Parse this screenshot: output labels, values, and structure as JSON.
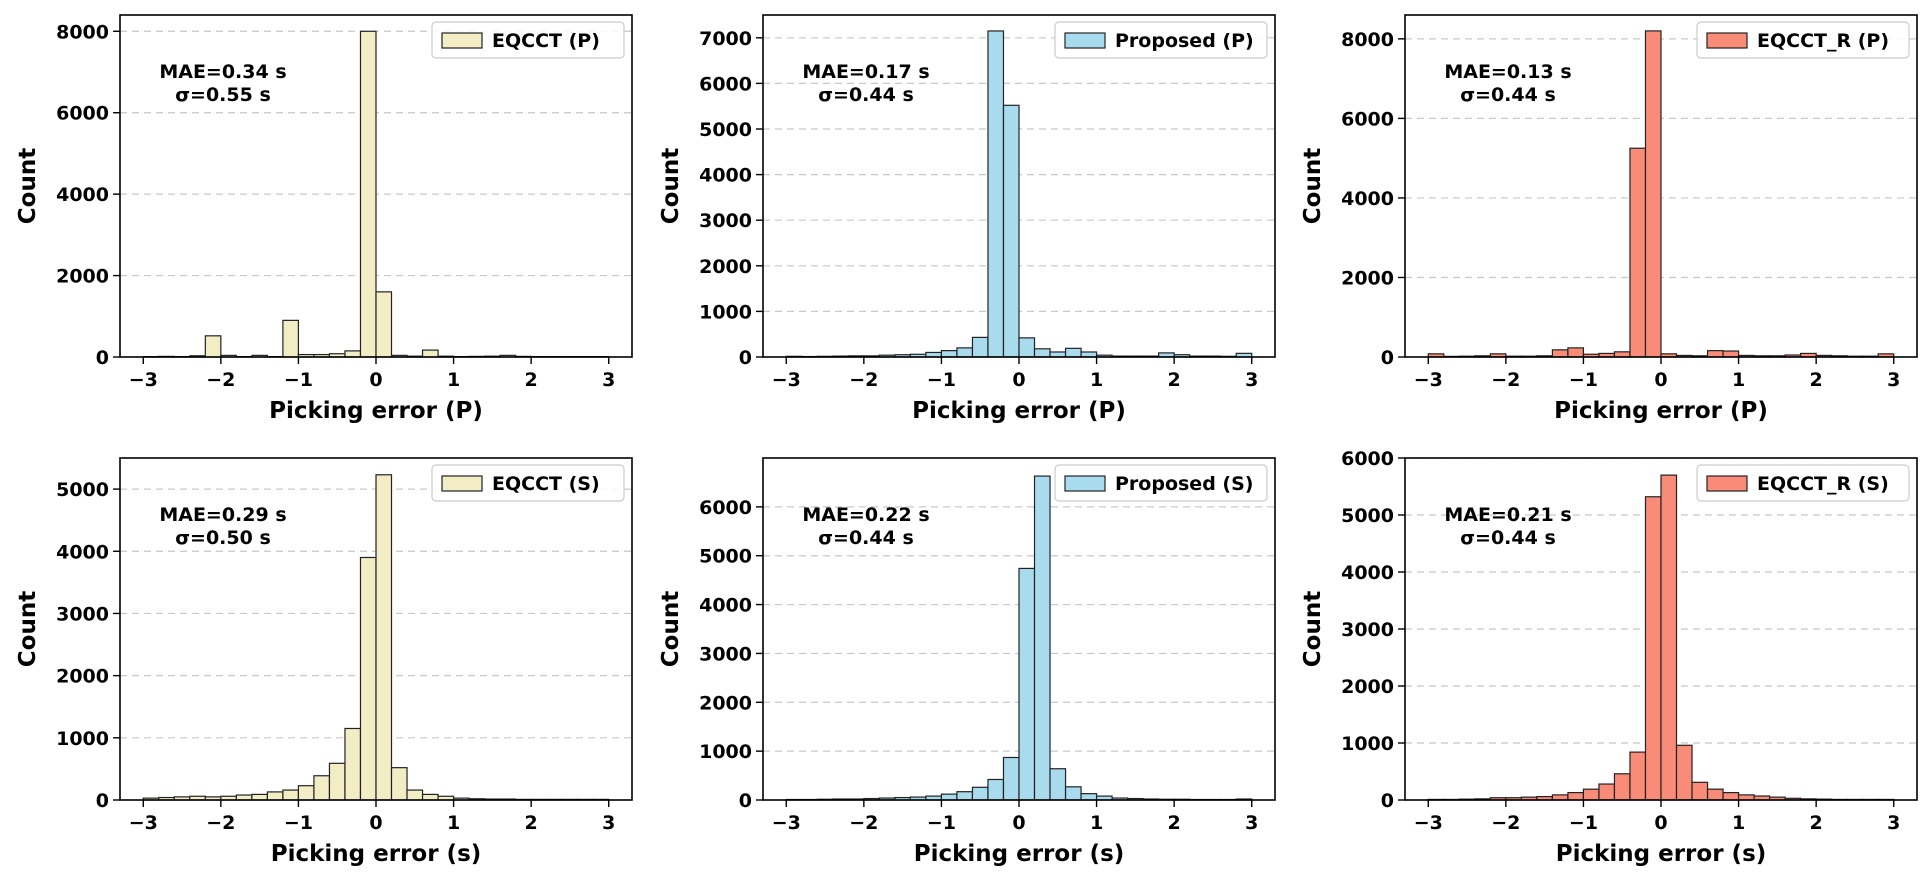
{
  "chart_data": [
    {
      "type": "bar",
      "legend": "EQCCT (P)",
      "legend_position": "top-right",
      "color": "#f2edc4",
      "xlabel": "Picking error (P)",
      "ylabel": "Count",
      "annotation": {
        "mae": "MAE=0.34 s",
        "sigma": "σ=0.55 s"
      },
      "xlim": [
        -3.3,
        3.3
      ],
      "ylim": [
        0,
        8400
      ],
      "xticks": [
        -3,
        -2,
        -1,
        0,
        1,
        2,
        3
      ],
      "yticks": [
        0,
        2000,
        4000,
        6000,
        8000
      ],
      "grid": "y-dashed",
      "bin_start": -3.0,
      "bin_width": 0.2,
      "values": [
        10,
        15,
        10,
        30,
        520,
        40,
        10,
        40,
        10,
        900,
        60,
        60,
        80,
        150,
        8000,
        1600,
        40,
        20,
        170,
        20,
        10,
        15,
        20,
        40,
        15,
        10,
        10,
        10,
        10,
        10
      ]
    },
    {
      "type": "bar",
      "legend": "Proposed (P)",
      "legend_position": "top-right",
      "color": "#a9dbee",
      "xlabel": "Picking error (P)",
      "ylabel": "Count",
      "annotation": {
        "mae": "MAE=0.17 s",
        "sigma": "σ=0.44 s"
      },
      "xlim": [
        -3.3,
        3.3
      ],
      "ylim": [
        0,
        7500
      ],
      "xticks": [
        -3,
        -2,
        -1,
        0,
        1,
        2,
        3
      ],
      "yticks": [
        0,
        1000,
        2000,
        3000,
        4000,
        5000,
        6000,
        7000
      ],
      "grid": "y-dashed",
      "bin_start": -3.0,
      "bin_width": 0.2,
      "values": [
        15,
        10,
        15,
        20,
        25,
        25,
        40,
        50,
        60,
        100,
        140,
        200,
        430,
        7150,
        5520,
        420,
        180,
        110,
        190,
        110,
        40,
        20,
        20,
        20,
        90,
        50,
        20,
        20,
        15,
        80
      ]
    },
    {
      "type": "bar",
      "legend": "EQCCT_R (P)",
      "legend_position": "top-right",
      "color": "#f98c79",
      "xlabel": "Picking error (P)",
      "ylabel": "Count",
      "annotation": {
        "mae": "MAE=0.13 s",
        "sigma": "σ=0.44 s"
      },
      "xlim": [
        -3.3,
        3.3
      ],
      "ylim": [
        0,
        8600
      ],
      "xticks": [
        -3,
        -2,
        -1,
        0,
        1,
        2,
        3
      ],
      "yticks": [
        0,
        2000,
        4000,
        6000,
        8000
      ],
      "grid": "y-dashed",
      "bin_start": -3.0,
      "bin_width": 0.2,
      "values": [
        80,
        15,
        20,
        30,
        80,
        20,
        20,
        30,
        180,
        230,
        70,
        90,
        130,
        5250,
        8200,
        80,
        40,
        30,
        160,
        150,
        40,
        30,
        30,
        50,
        90,
        40,
        30,
        20,
        20,
        80
      ]
    },
    {
      "type": "bar",
      "legend": "EQCCT (S)",
      "legend_position": "top-right",
      "color": "#f2edc4",
      "xlabel": "Picking error (s)",
      "ylabel": "Count",
      "annotation": {
        "mae": "MAE=0.29 s",
        "sigma": "σ=0.50 s"
      },
      "xlim": [
        -3.3,
        3.3
      ],
      "ylim": [
        0,
        5500
      ],
      "xticks": [
        -3,
        -2,
        -1,
        0,
        1,
        2,
        3
      ],
      "yticks": [
        0,
        1000,
        2000,
        3000,
        4000,
        5000
      ],
      "grid": "y-dashed",
      "bin_start": -3.0,
      "bin_width": 0.2,
      "values": [
        30,
        40,
        50,
        60,
        50,
        60,
        80,
        90,
        130,
        160,
        230,
        390,
        590,
        1150,
        3900,
        5230,
        520,
        160,
        90,
        60,
        30,
        20,
        15,
        15,
        10,
        10,
        10,
        10,
        10,
        10
      ]
    },
    {
      "type": "bar",
      "legend": "Proposed (S)",
      "legend_position": "top-right",
      "color": "#a9dbee",
      "xlabel": "Picking error (s)",
      "ylabel": "Count",
      "annotation": {
        "mae": "MAE=0.22 s",
        "sigma": "σ=0.44 s"
      },
      "xlim": [
        -3.3,
        3.3
      ],
      "ylim": [
        0,
        7000
      ],
      "xticks": [
        -3,
        -2,
        -1,
        0,
        1,
        2,
        3
      ],
      "yticks": [
        0,
        1000,
        2000,
        3000,
        4000,
        5000,
        6000
      ],
      "grid": "y-dashed",
      "bin_start": -3.0,
      "bin_width": 0.2,
      "values": [
        10,
        10,
        15,
        20,
        20,
        30,
        40,
        50,
        60,
        80,
        120,
        170,
        260,
        420,
        870,
        4740,
        6630,
        640,
        270,
        130,
        80,
        40,
        30,
        20,
        15,
        15,
        10,
        10,
        10,
        20
      ]
    },
    {
      "type": "bar",
      "legend": "EQCCT_R (S)",
      "legend_position": "top-right",
      "color": "#f98c79",
      "xlabel": "Picking error (s)",
      "ylabel": "Count",
      "annotation": {
        "mae": "MAE=0.21 s",
        "sigma": "σ=0.44 s"
      },
      "xlim": [
        -3.3,
        3.3
      ],
      "ylim": [
        0,
        6000
      ],
      "xticks": [
        -3,
        -2,
        -1,
        0,
        1,
        2,
        3
      ],
      "yticks": [
        0,
        1000,
        2000,
        3000,
        4000,
        5000,
        6000
      ],
      "grid": "y-dashed",
      "bin_start": -3.0,
      "bin_width": 0.2,
      "values": [
        10,
        10,
        15,
        20,
        40,
        40,
        50,
        60,
        90,
        130,
        190,
        280,
        460,
        840,
        5320,
        5700,
        960,
        310,
        190,
        130,
        90,
        70,
        50,
        30,
        20,
        15,
        10,
        10,
        10,
        10
      ]
    }
  ]
}
